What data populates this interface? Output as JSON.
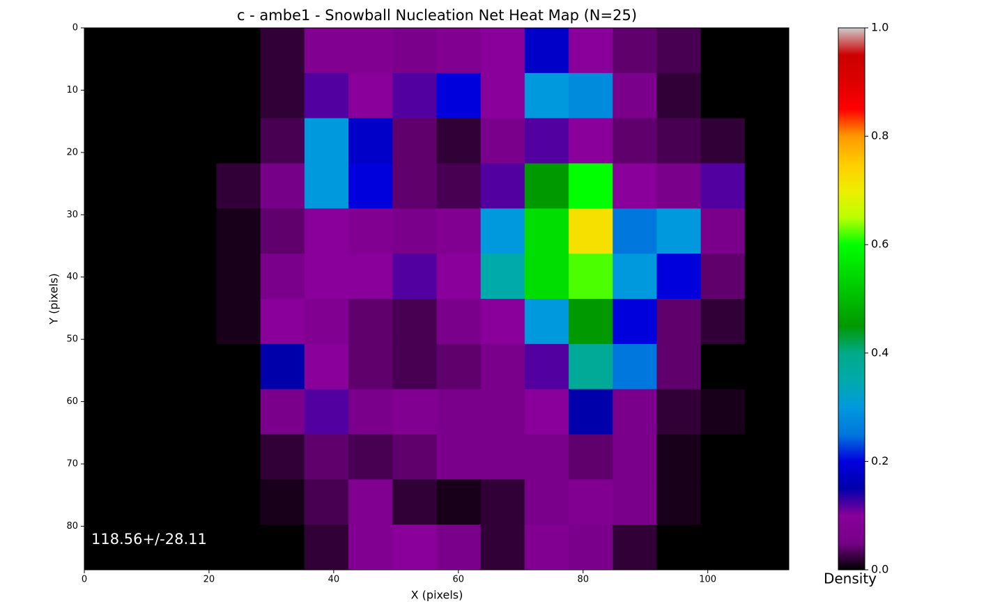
{
  "chart_data": {
    "type": "heatmap",
    "title": "c - ambe1 - Snowball Nucleation Net Heat Map (N=25)",
    "x_label": "X (pixels)",
    "y_label": "Y (pixels)",
    "annotation": "118.56+/-28.11",
    "colorbar_label": "Density",
    "colormap": "nipy_spectral",
    "xlim": [
      0,
      113
    ],
    "ylim": [
      87,
      0
    ],
    "xticks": [
      0,
      20,
      40,
      60,
      80,
      100
    ],
    "yticks": [
      0,
      10,
      20,
      30,
      40,
      50,
      60,
      70,
      80
    ],
    "clim": [
      0,
      1
    ],
    "cticks": [
      {
        "value": 0,
        "label": "0.0"
      },
      0.2,
      0.4,
      0.6,
      0.8,
      {
        "value": 1,
        "label": "1.0"
      }
    ],
    "z": [
      [
        0,
        0,
        0,
        0,
        0.02,
        0.08,
        0.08,
        0.06,
        0.08,
        0.1,
        0.18,
        0.1,
        0.04,
        0.03,
        0,
        0
      ],
      [
        0,
        0,
        0,
        0,
        0.02,
        0.12,
        0.1,
        0.12,
        0.2,
        0.1,
        0.3,
        0.28,
        0.06,
        0.02,
        0,
        0
      ],
      [
        0,
        0,
        0,
        0,
        0.03,
        0.3,
        0.18,
        0.04,
        0.02,
        0.06,
        0.12,
        0.1,
        0.04,
        0.03,
        0.02,
        0
      ],
      [
        0,
        0,
        0,
        0.02,
        0.05,
        0.3,
        0.2,
        0.04,
        0.03,
        0.12,
        0.45,
        0.6,
        0.1,
        0.06,
        0.12,
        0
      ],
      [
        0,
        0,
        0,
        0.01,
        0.04,
        0.1,
        0.08,
        0.06,
        0.08,
        0.3,
        0.55,
        0.72,
        0.25,
        0.3,
        0.06,
        0
      ],
      [
        0,
        0,
        0,
        0.01,
        0.06,
        0.1,
        0.1,
        0.12,
        0.1,
        0.35,
        0.55,
        0.62,
        0.3,
        0.2,
        0.04,
        0
      ],
      [
        0,
        0,
        0,
        0.01,
        0.1,
        0.08,
        0.04,
        0.03,
        0.06,
        0.1,
        0.3,
        0.45,
        0.2,
        0.04,
        0.02,
        0
      ],
      [
        0,
        0,
        0,
        0,
        0.15,
        0.1,
        0.04,
        0.03,
        0.04,
        0.06,
        0.12,
        0.38,
        0.25,
        0.04,
        0,
        0
      ],
      [
        0,
        0,
        0,
        0,
        0.06,
        0.12,
        0.06,
        0.08,
        0.06,
        0.06,
        0.1,
        0.15,
        0.06,
        0.02,
        0.01,
        0
      ],
      [
        0,
        0,
        0,
        0,
        0.02,
        0.04,
        0.03,
        0.04,
        0.06,
        0.06,
        0.06,
        0.04,
        0.06,
        0.01,
        0,
        0
      ],
      [
        0,
        0,
        0,
        0,
        0.01,
        0.03,
        0.08,
        0.02,
        0.01,
        0.02,
        0.06,
        0.08,
        0.06,
        0.01,
        0,
        0
      ],
      [
        0,
        0,
        0,
        0,
        0,
        0.02,
        0.08,
        0.1,
        0.06,
        0.02,
        0.08,
        0.06,
        0.02,
        0,
        0,
        0
      ]
    ]
  }
}
